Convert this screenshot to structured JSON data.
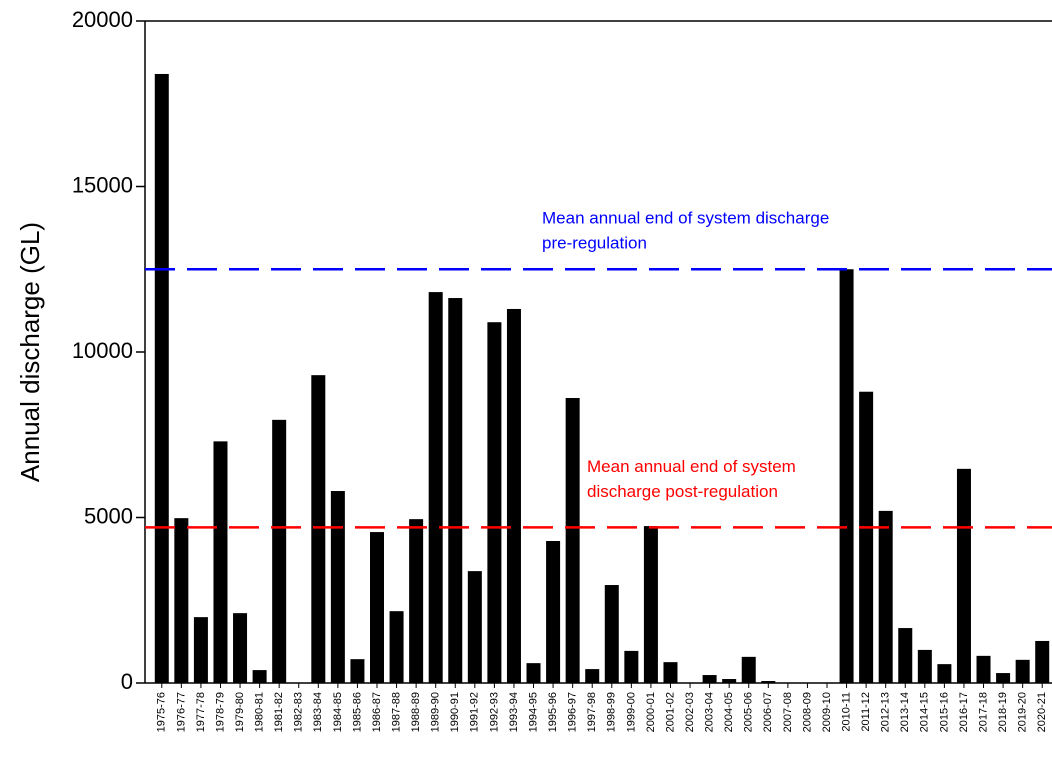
{
  "chart_data": {
    "type": "bar",
    "y_label": "Annual discharge (GL)",
    "categories": [
      "1975-76",
      "1976-77",
      "1977-78",
      "1978-79",
      "1979-80",
      "1980-81",
      "1981-82",
      "1982-83",
      "1983-84",
      "1984-85",
      "1985-86",
      "1986-87",
      "1987-88",
      "1988-89",
      "1989-90",
      "1990-91",
      "1991-92",
      "1992-93",
      "1993-94",
      "1994-95",
      "1995-96",
      "1996-97",
      "1997-98",
      "1998-99",
      "1999-00",
      "2000-01",
      "2001-02",
      "2002-03",
      "2003-04",
      "2004-05",
      "2005-06",
      "2006-07",
      "2007-08",
      "2008-09",
      "2009-10",
      "2010-11",
      "2011-12",
      "2012-13",
      "2013-14",
      "2014-15",
      "2015-16",
      "2016-17",
      "2017-18",
      "2018-19",
      "2019-20",
      "2020-21"
    ],
    "values": [
      18400,
      4980,
      1990,
      7300,
      2110,
      390,
      7950,
      0,
      9300,
      5800,
      720,
      4560,
      2170,
      4950,
      11810,
      11630,
      3380,
      10900,
      11300,
      600,
      4290,
      8610,
      420,
      2960,
      970,
      4740,
      630,
      0,
      240,
      120,
      790,
      60,
      0,
      0,
      0,
      12500,
      8800,
      5200,
      1660,
      1000,
      570,
      6470,
      820,
      300,
      700,
      1270
    ],
    "color": "#000000",
    "ylim": [
      0,
      20000
    ],
    "yticks": [
      0,
      5000,
      10000,
      15000,
      20000
    ],
    "reference_lines": [
      {
        "value": 12500,
        "color": "#0000ff",
        "label": [
          "Mean annual end of system discharge",
          "pre-regulation"
        ]
      },
      {
        "value": 4700,
        "color": "#ff0000",
        "label": [
          "Mean annual end of system",
          "discharge post-regulation"
        ]
      }
    ]
  }
}
